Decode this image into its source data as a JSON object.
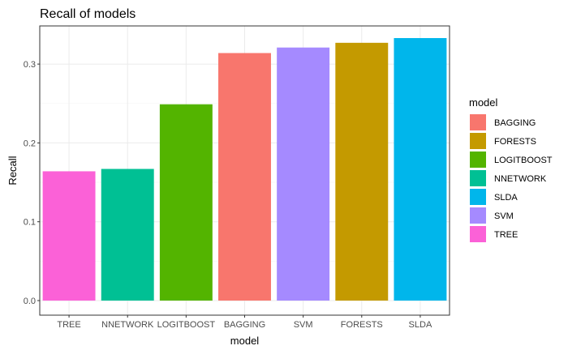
{
  "chart_data": {
    "type": "bar",
    "title": "Recall of models",
    "xlabel": "model",
    "ylabel": "Recall",
    "categories": [
      "TREE",
      "NNETWORK",
      "LOGITBOOST",
      "BAGGING",
      "SVM",
      "FORESTS",
      "SLDA"
    ],
    "values": [
      0.164,
      0.167,
      0.249,
      0.314,
      0.321,
      0.327,
      0.333
    ],
    "ylim": [
      0,
      0.35
    ],
    "yticks": [
      0.0,
      0.1,
      0.2,
      0.3
    ],
    "ytick_labels": [
      "0.0",
      "0.1",
      "0.2",
      "0.3"
    ],
    "grid": true,
    "legend": {
      "title": "model",
      "position": "right",
      "entries": [
        {
          "label": "BAGGING",
          "color": "#F8766D"
        },
        {
          "label": "FORESTS",
          "color": "#C49A00"
        },
        {
          "label": "LOGITBOOST",
          "color": "#53B400"
        },
        {
          "label": "NNETWORK",
          "color": "#00C094"
        },
        {
          "label": "SLDA",
          "color": "#00B6EB"
        },
        {
          "label": "SVM",
          "color": "#A58AFF"
        },
        {
          "label": "TREE",
          "color": "#FB61D7"
        }
      ]
    }
  }
}
